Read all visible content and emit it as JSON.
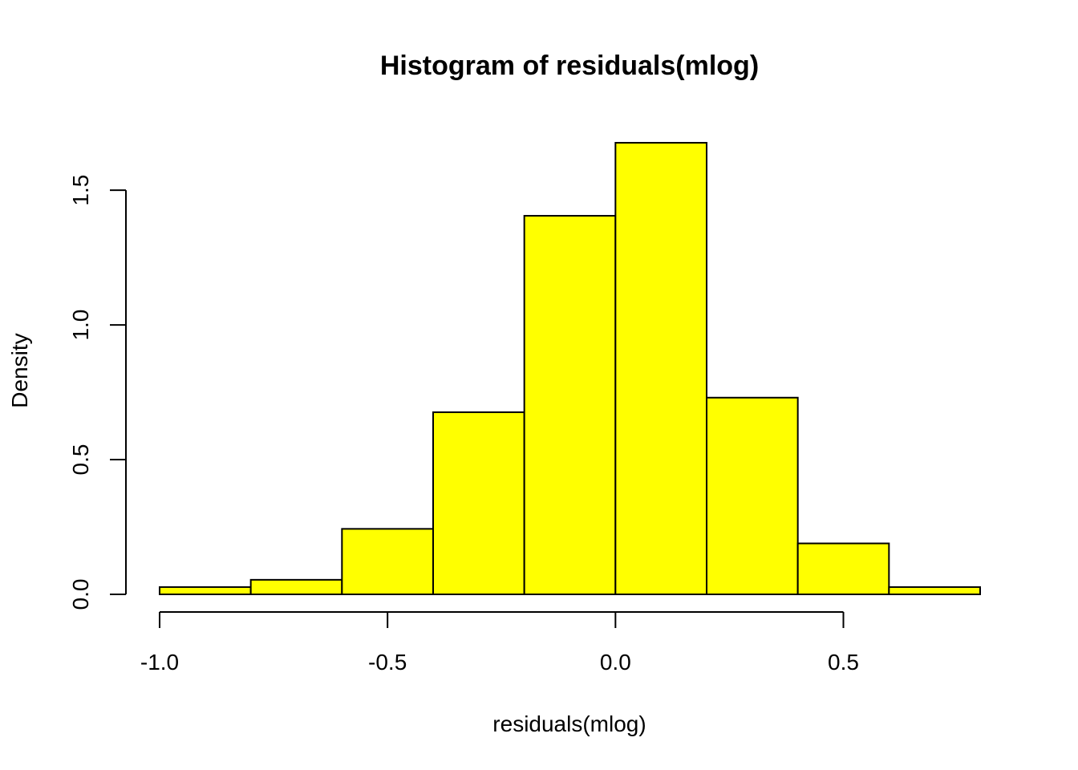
{
  "chart_data": {
    "type": "bar",
    "subtype": "histogram",
    "title": "Histogram of residuals(mlog)",
    "xlabel": "residuals(mlog)",
    "ylabel": "Density",
    "bin_edges": [
      -1.0,
      -0.8,
      -0.6,
      -0.4,
      -0.2,
      0.0,
      0.2,
      0.4,
      0.6,
      0.8
    ],
    "values": [
      0.027,
      0.054,
      0.243,
      0.676,
      1.405,
      1.676,
      0.73,
      0.189,
      0.027
    ],
    "xlim": [
      -1.0,
      0.8
    ],
    "ylim": [
      0,
      1.67
    ],
    "x_ticks": [
      -1.0,
      -0.5,
      0.0,
      0.5
    ],
    "x_tick_labels": [
      "-1.0",
      "-0.5",
      "0.0",
      "0.5"
    ],
    "y_ticks": [
      0.0,
      0.5,
      1.0,
      1.5
    ],
    "y_tick_labels": [
      "0.0",
      "0.5",
      "1.0",
      "1.5"
    ],
    "grid": false,
    "legend": "none",
    "colors": {
      "bar_fill": "#ffff00",
      "bar_stroke": "#000000",
      "background": "#ffffff"
    }
  }
}
